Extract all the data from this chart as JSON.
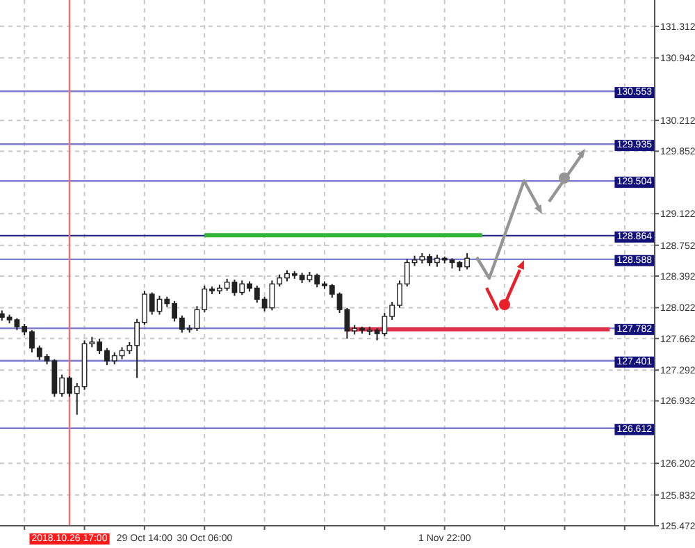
{
  "chart_data": {
    "type": "candlestick",
    "categories": [
      null,
      null,
      null,
      null,
      null,
      null,
      null,
      null,
      null,
      "2018.10.26 17:00",
      null,
      null,
      null,
      null,
      null,
      null,
      null,
      null,
      null,
      "29 Oct 14:00",
      null,
      null,
      null,
      null,
      null,
      null,
      null,
      "30 Oct 06:00",
      null,
      null,
      null,
      null,
      null,
      null,
      null,
      null,
      null,
      null,
      null,
      null,
      null,
      null,
      null,
      null,
      null,
      null,
      null,
      null,
      null,
      null,
      null,
      null,
      null,
      null,
      null,
      null,
      null,
      null,
      null,
      "1 Nov 22:00",
      null,
      null,
      null,
      null,
      null,
      null,
      null,
      null,
      null,
      null,
      null,
      null,
      null,
      null,
      null,
      null,
      null,
      null,
      null,
      null,
      null,
      null,
      null,
      null,
      null,
      null,
      null,
      null
    ],
    "ohlc": [
      [
        127.95,
        127.99,
        127.87,
        127.91
      ],
      [
        127.91,
        127.94,
        127.84,
        127.88
      ],
      [
        127.88,
        127.9,
        127.76,
        127.8
      ],
      [
        127.8,
        127.83,
        127.7,
        127.74
      ],
      [
        127.74,
        127.76,
        127.5,
        127.55
      ],
      [
        127.55,
        127.58,
        127.41,
        127.45
      ],
      [
        127.45,
        127.48,
        127.36,
        127.4
      ],
      [
        127.4,
        127.42,
        126.98,
        127.02
      ],
      [
        127.02,
        127.24,
        126.98,
        127.2
      ],
      [
        127.2,
        127.22,
        126.98,
        127.02
      ],
      [
        127.02,
        127.14,
        126.77,
        127.1
      ],
      [
        127.1,
        127.64,
        127.06,
        127.6
      ],
      [
        127.6,
        127.68,
        127.56,
        127.62
      ],
      [
        127.62,
        127.66,
        127.48,
        127.52
      ],
      [
        127.52,
        127.55,
        127.35,
        127.4
      ],
      [
        127.4,
        127.5,
        127.36,
        127.46
      ],
      [
        127.46,
        127.56,
        127.42,
        127.52
      ],
      [
        127.52,
        127.62,
        127.48,
        127.58
      ],
      [
        127.58,
        127.89,
        127.2,
        127.85
      ],
      [
        127.85,
        128.22,
        127.82,
        128.18
      ],
      [
        128.18,
        128.2,
        127.94,
        127.98
      ],
      [
        127.98,
        128.16,
        127.94,
        128.12
      ],
      [
        128.12,
        128.15,
        128.03,
        128.07
      ],
      [
        128.07,
        128.1,
        127.86,
        127.9
      ],
      [
        127.9,
        127.93,
        127.73,
        127.77
      ],
      [
        127.77,
        127.82,
        127.73,
        127.78
      ],
      [
        127.78,
        128.04,
        127.75,
        128.0
      ],
      [
        128.0,
        128.28,
        127.97,
        128.24
      ],
      [
        128.24,
        128.27,
        128.18,
        128.22
      ],
      [
        128.22,
        128.29,
        128.18,
        128.25
      ],
      [
        128.25,
        128.36,
        128.22,
        128.32
      ],
      [
        128.32,
        128.35,
        128.16,
        128.2
      ],
      [
        128.2,
        128.34,
        128.17,
        128.3
      ],
      [
        128.3,
        128.33,
        128.21,
        128.25
      ],
      [
        128.25,
        128.28,
        128.08,
        128.12
      ],
      [
        128.12,
        128.15,
        127.98,
        128.02
      ],
      [
        128.02,
        128.34,
        127.99,
        128.3
      ],
      [
        128.3,
        128.41,
        128.27,
        128.37
      ],
      [
        128.37,
        128.46,
        128.33,
        128.42
      ],
      [
        128.42,
        128.45,
        128.36,
        128.4
      ],
      [
        128.4,
        128.43,
        128.31,
        128.35
      ],
      [
        128.35,
        128.44,
        128.32,
        128.4
      ],
      [
        128.4,
        128.42,
        128.26,
        128.3
      ],
      [
        128.3,
        128.33,
        128.24,
        128.28
      ],
      [
        128.28,
        128.3,
        128.14,
        128.18
      ],
      [
        128.18,
        128.2,
        127.96,
        128.0
      ],
      [
        128.0,
        128.02,
        127.66,
        127.75
      ],
      [
        127.75,
        127.82,
        127.71,
        127.78
      ],
      [
        127.78,
        127.8,
        127.72,
        127.76
      ],
      [
        127.76,
        127.8,
        127.7,
        127.76
      ],
      [
        127.76,
        127.78,
        127.64,
        127.72
      ],
      [
        127.72,
        127.96,
        127.69,
        127.92
      ],
      [
        127.92,
        128.09,
        127.88,
        128.05
      ],
      [
        128.05,
        128.34,
        128.02,
        128.3
      ],
      [
        128.3,
        128.59,
        128.27,
        128.55
      ],
      [
        128.55,
        128.63,
        128.51,
        128.58
      ],
      [
        128.58,
        128.66,
        128.54,
        128.62
      ],
      [
        128.62,
        128.65,
        128.51,
        128.55
      ],
      [
        128.55,
        128.64,
        128.5,
        128.6
      ],
      [
        128.6,
        128.62,
        128.54,
        128.58
      ],
      [
        128.58,
        128.6,
        128.48,
        128.55
      ],
      [
        128.55,
        128.57,
        128.45,
        128.5
      ],
      [
        128.5,
        128.66,
        128.47,
        128.6
      ],
      null,
      null,
      null,
      null,
      null,
      null,
      null,
      null,
      null,
      null,
      null,
      null,
      null,
      null,
      null,
      null,
      null,
      null,
      null,
      null,
      null,
      null,
      null,
      null,
      null
    ],
    "series": [
      {
        "type": "line",
        "color": "#33b533",
        "values": [
          null,
          null,
          null,
          null,
          null,
          null,
          null,
          null,
          null,
          null,
          null,
          null,
          null,
          null,
          null,
          null,
          null,
          null,
          null,
          null,
          null,
          null,
          null,
          null,
          null,
          null,
          null,
          128.87,
          128.87,
          128.87,
          128.87,
          128.87,
          128.87,
          128.87,
          128.87,
          128.87,
          128.87,
          128.87,
          128.87,
          128.87,
          128.87,
          128.87,
          128.87,
          128.87,
          128.87,
          128.87,
          128.87,
          128.87,
          128.87,
          128.87,
          128.87,
          128.87,
          128.87,
          128.87,
          128.87,
          128.87,
          128.87,
          128.87,
          128.87,
          128.87,
          128.87,
          128.87,
          128.87,
          128.87,
          128.87,
          null,
          null,
          null,
          null,
          null,
          null,
          null,
          null,
          null,
          null,
          null,
          null,
          null,
          null,
          null,
          null,
          null,
          null,
          null,
          null,
          null,
          null,
          null
        ]
      },
      {
        "type": "line",
        "color": "#e0304a",
        "values": [
          null,
          null,
          null,
          null,
          null,
          null,
          null,
          null,
          null,
          null,
          null,
          null,
          null,
          null,
          null,
          null,
          null,
          null,
          null,
          null,
          null,
          null,
          null,
          null,
          null,
          null,
          null,
          null,
          null,
          null,
          null,
          null,
          null,
          null,
          null,
          null,
          null,
          null,
          null,
          null,
          null,
          null,
          null,
          null,
          null,
          null,
          127.77,
          127.77,
          127.77,
          127.77,
          127.77,
          127.77,
          127.77,
          127.77,
          127.77,
          127.77,
          127.77,
          127.77,
          127.77,
          127.77,
          127.77,
          127.77,
          127.77,
          127.77,
          127.77,
          127.77,
          127.77,
          127.77,
          127.77,
          127.77,
          127.77,
          127.77,
          127.77,
          127.77,
          127.77,
          127.77,
          127.77,
          127.77,
          127.77,
          127.77,
          127.77,
          127.77,
          null,
          null,
          null,
          null,
          null,
          null
        ]
      }
    ],
    "ylim": [
      125.472,
      131.62
    ],
    "yticks": [
      131.312,
      130.942,
      130.212,
      129.852,
      129.122,
      128.752,
      128.392,
      128.022,
      127.662,
      127.292,
      126.932,
      126.202,
      125.832,
      125.472
    ],
    "grid": true,
    "ref_lines": [
      {
        "axis": "y",
        "value": 130.553,
        "label": "130.553",
        "color": "#7c7cd0"
      },
      {
        "axis": "y",
        "value": 129.935,
        "label": "129.935",
        "color": "#7c7cd0"
      },
      {
        "axis": "y",
        "value": 129.504,
        "label": "129.504",
        "color": "#7c7cd0"
      },
      {
        "axis": "y",
        "value": 128.864,
        "label": "128.864",
        "color": "#2a2a8a"
      },
      {
        "axis": "y",
        "value": 128.588,
        "label": "128.588",
        "color": "#7c7cd0"
      },
      {
        "axis": "y",
        "value": 127.782,
        "label": "127.782",
        "color": "#7c7cd0"
      },
      {
        "axis": "y",
        "value": 127.401,
        "label": "127.401",
        "color": "#7c7cd0"
      },
      {
        "axis": "y",
        "value": 126.612,
        "label": "126.612",
        "color": "#7c7cd0"
      },
      {
        "axis": "x",
        "value": "2018.10.26 17:00",
        "color": "#f07070"
      }
    ]
  }
}
